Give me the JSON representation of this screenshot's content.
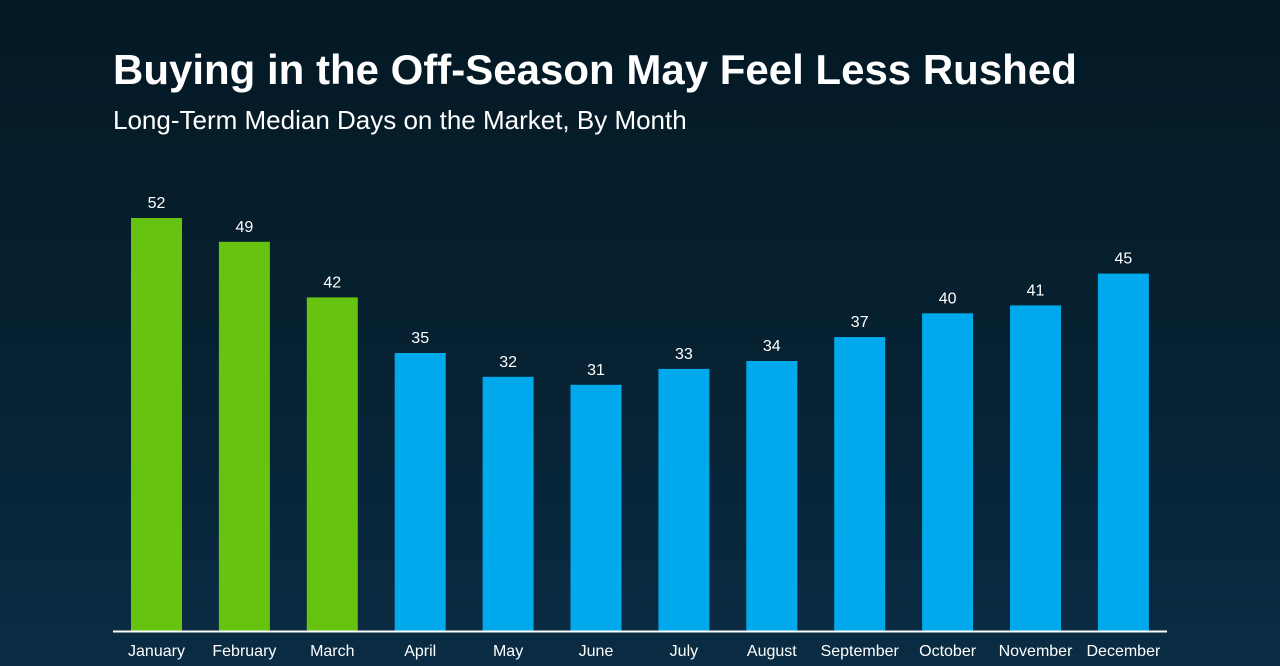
{
  "chart_data": {
    "type": "bar",
    "title": "Buying in the Off-Season May Feel Less Rushed",
    "subtitle": "Long-Term Median Days on the Market, By Month",
    "xlabel": "",
    "ylabel": "",
    "ylim": [
      0,
      52
    ],
    "grid": false,
    "legend": "none",
    "categories": [
      "January",
      "February",
      "March",
      "April",
      "May",
      "June",
      "July",
      "August",
      "September",
      "October",
      "November",
      "December"
    ],
    "values": [
      52,
      49,
      42,
      35,
      32,
      31,
      33,
      34,
      37,
      40,
      41,
      45
    ],
    "highlighted": [
      true,
      true,
      true,
      false,
      false,
      false,
      false,
      false,
      false,
      false,
      false,
      false
    ],
    "colors": {
      "highlight": "#66c410",
      "default": "#00a9ec",
      "axis": "#ffffff"
    }
  }
}
